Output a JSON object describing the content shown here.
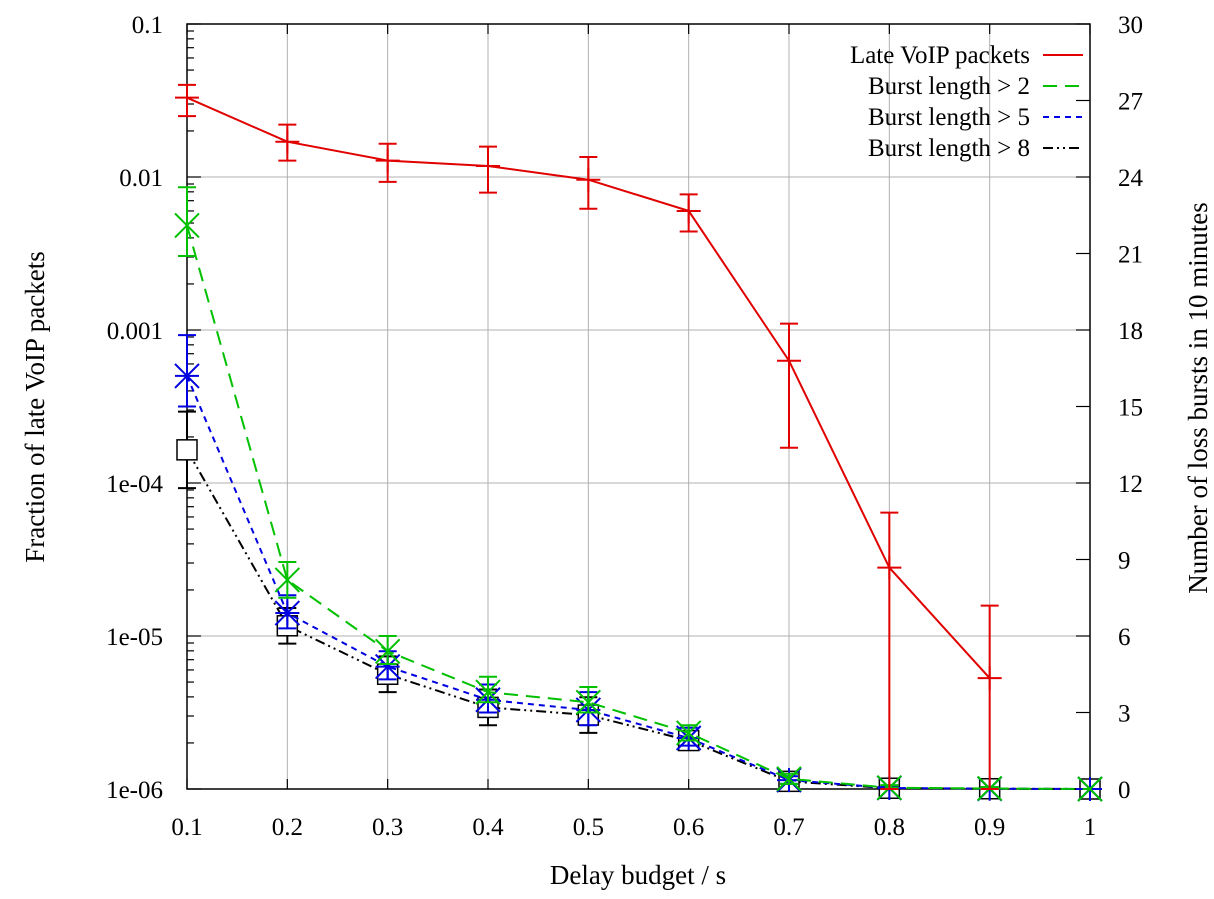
{
  "chart_data": {
    "type": "line",
    "xlabel": "Delay budget / s",
    "ylabel_left": "Fraction of late VoIP packets",
    "ylabel_right": "Number of loss bursts in 10 minutes",
    "x_ticks": [
      "0.1",
      "0.2",
      "0.3",
      "0.4",
      "0.5",
      "0.6",
      "0.7",
      "0.8",
      "0.9",
      "1"
    ],
    "xlim": [
      0.1,
      1.0
    ],
    "y_left_scale": "log",
    "y_left_ticks": [
      "1e-06",
      "1e-05",
      "1e-04",
      "0.001",
      "0.01",
      "0.1"
    ],
    "y_left_lim": [
      1e-06,
      0.1
    ],
    "y_right_ticks": [
      "0",
      "3",
      "6",
      "9",
      "12",
      "15",
      "18",
      "21",
      "24",
      "27",
      "30"
    ],
    "y_right_lim": [
      0,
      30
    ],
    "grid": true,
    "legend_position": "top-right",
    "series": [
      {
        "name": "Late VoIP packets",
        "axis": "left",
        "color": "#e00000",
        "dash": "none",
        "marker": "plus",
        "x": [
          0.1,
          0.2,
          0.3,
          0.4,
          0.5,
          0.6,
          0.7,
          0.8,
          0.9
        ],
        "y": [
          0.033,
          0.017,
          0.0128,
          0.0118,
          0.0096,
          0.006,
          0.00063,
          2.8e-05,
          5.3e-06
        ],
        "err_low": [
          0.025,
          0.0128,
          0.0093,
          0.0079,
          0.0062,
          0.0044,
          0.00017,
          1e-06,
          1e-06
        ],
        "err_high": [
          0.04,
          0.022,
          0.0165,
          0.0158,
          0.0135,
          0.0077,
          0.0011,
          6.4e-05,
          1.58e-05
        ]
      },
      {
        "name": "Burst length > 2",
        "axis": "right",
        "color": "#00c000",
        "dash": "14,8",
        "marker": "x",
        "x": [
          0.1,
          0.2,
          0.3,
          0.4,
          0.5,
          0.6,
          0.7,
          0.8,
          0.9,
          1.0
        ],
        "y": [
          22.1,
          8.2,
          5.4,
          3.8,
          3.4,
          2.2,
          0.4,
          0.05,
          0.02,
          0.0
        ],
        "err_low": [
          20.9,
          7.5,
          4.9,
          3.4,
          3.0,
          1.9,
          0.2,
          0.0,
          0.0,
          0.0
        ],
        "err_high": [
          23.6,
          8.9,
          6.0,
          4.4,
          4.0,
          2.5,
          0.6,
          0.15,
          0.08,
          0.0
        ]
      },
      {
        "name": "Burst length > 5",
        "axis": "right",
        "color": "#0000e0",
        "dash": "6,5",
        "marker": "star",
        "x": [
          0.1,
          0.2,
          0.3,
          0.4,
          0.5,
          0.6,
          0.7,
          0.8,
          0.9,
          1.0
        ],
        "y": [
          16.2,
          6.9,
          4.8,
          3.5,
          3.1,
          2.0,
          0.35,
          0.04,
          0.01,
          0.0
        ],
        "err_low": [
          15.0,
          6.3,
          4.3,
          3.0,
          2.5,
          1.7,
          0.2,
          0.0,
          0.0,
          0.0
        ],
        "err_high": [
          17.8,
          7.6,
          5.4,
          4.1,
          3.8,
          2.4,
          0.5,
          0.1,
          0.05,
          0.0
        ]
      },
      {
        "name": "Burst length > 8",
        "axis": "right",
        "color": "#000000",
        "dash": "10,4,2,4,2,4",
        "marker": "square",
        "x": [
          0.1,
          0.2,
          0.3,
          0.4,
          0.5,
          0.6,
          0.7,
          0.8,
          0.9,
          1.0
        ],
        "y": [
          13.3,
          6.4,
          4.5,
          3.2,
          2.9,
          1.9,
          0.3,
          0.03,
          0.01,
          0.0
        ],
        "err_low": [
          11.8,
          5.7,
          3.8,
          2.5,
          2.2,
          1.6,
          0.15,
          0.0,
          0.0,
          0.0
        ],
        "err_high": [
          14.8,
          7.1,
          5.2,
          3.9,
          3.6,
          2.2,
          0.45,
          0.08,
          0.03,
          0.0
        ]
      }
    ]
  }
}
